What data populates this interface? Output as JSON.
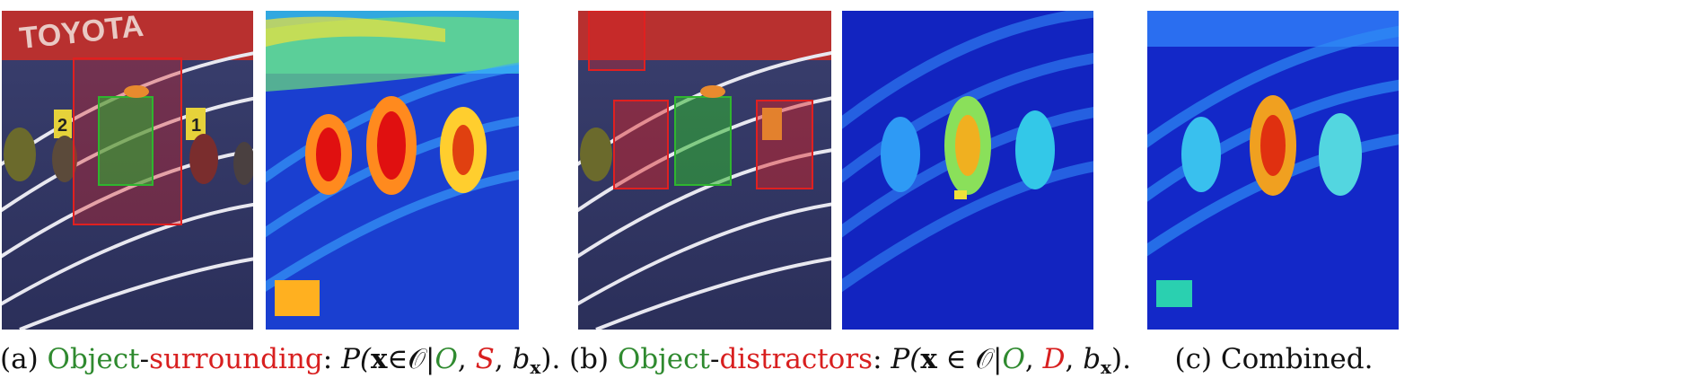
{
  "figure": {
    "images": {
      "sponsor_text": "TOYOTA",
      "lane_numbers": [
        "2",
        "1"
      ]
    },
    "captions": {
      "a": {
        "prefix": "(a)",
        "word1": "Object",
        "dash": "-",
        "word2": "surrounding",
        "colon": ":",
        "formula_start": "P(",
        "x": "x",
        "in": "∈",
        "set": "𝒪",
        "bar": "|",
        "O": "O",
        "comma": ",",
        "second": "S",
        "comma2": ",",
        "b": "b",
        "sub": "x",
        "end": ")."
      },
      "b": {
        "prefix": "(b)",
        "word1": "Object",
        "dash": "-",
        "word2": "distractors",
        "colon": ":",
        "formula_start": "P(",
        "x": "x",
        "in": " ∈ ",
        "set": "𝒪",
        "bar": "|",
        "O": "O",
        "comma": ",",
        "second": "D",
        "comma2": ",",
        "b": "b",
        "sub": "x",
        "end": ")."
      },
      "c": {
        "text": "(c) Combined."
      }
    },
    "colors": {
      "object_box": "#2fb52f",
      "surrounding_box": "#e02020",
      "distractor_box": "#e02020",
      "caption_green": "#2f8a2f",
      "caption_red": "#d81f1f",
      "heatmap_low": "#1020c0",
      "heatmap_high": "#e01010"
    }
  }
}
